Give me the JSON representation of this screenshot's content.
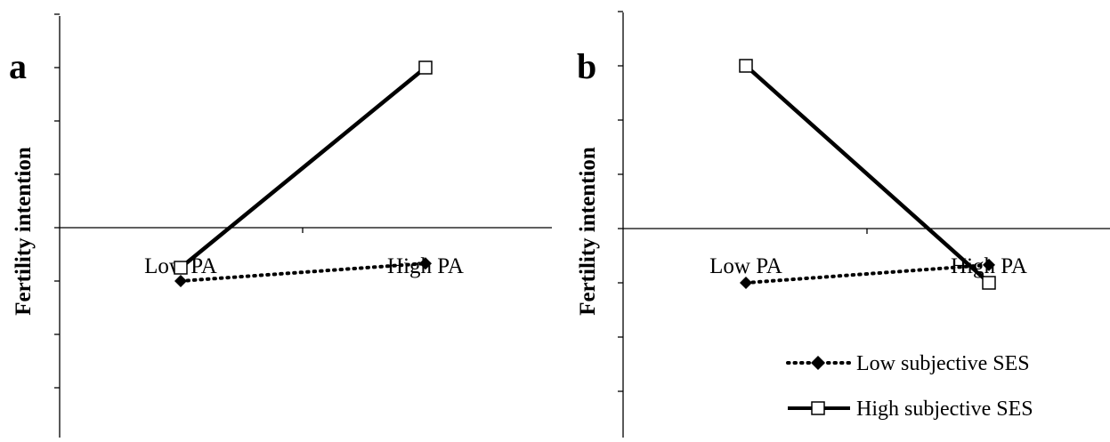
{
  "chart_data": [
    {
      "type": "line",
      "panel_label": "a",
      "ylabel": "Fertility intention",
      "categories": [
        "Low PA",
        "High PA"
      ],
      "series": [
        {
          "name": "Low subjective SES",
          "values": [
            -1.0,
            -0.67
          ],
          "style": "dotted",
          "marker": "diamond-filled"
        },
        {
          "name": "High subjective SES",
          "values": [
            -0.75,
            3.0
          ],
          "style": "solid",
          "marker": "square-open"
        }
      ],
      "ylim": [
        -4,
        4
      ],
      "grid": false,
      "legend": "none"
    },
    {
      "type": "line",
      "panel_label": "b",
      "ylabel": "Fertility intention",
      "categories": [
        "Low PA",
        "High PA"
      ],
      "series": [
        {
          "name": "Low subjective SES",
          "values": [
            -1.0,
            -0.67
          ],
          "style": "dotted",
          "marker": "diamond-filled"
        },
        {
          "name": "High subjective SES",
          "values": [
            3.0,
            -1.0
          ],
          "style": "solid",
          "marker": "square-open"
        }
      ],
      "ylim": [
        -4,
        4
      ],
      "grid": false,
      "legend": "bottom-right"
    }
  ],
  "colors": {
    "ink": "#000000",
    "background": "#ffffff"
  }
}
